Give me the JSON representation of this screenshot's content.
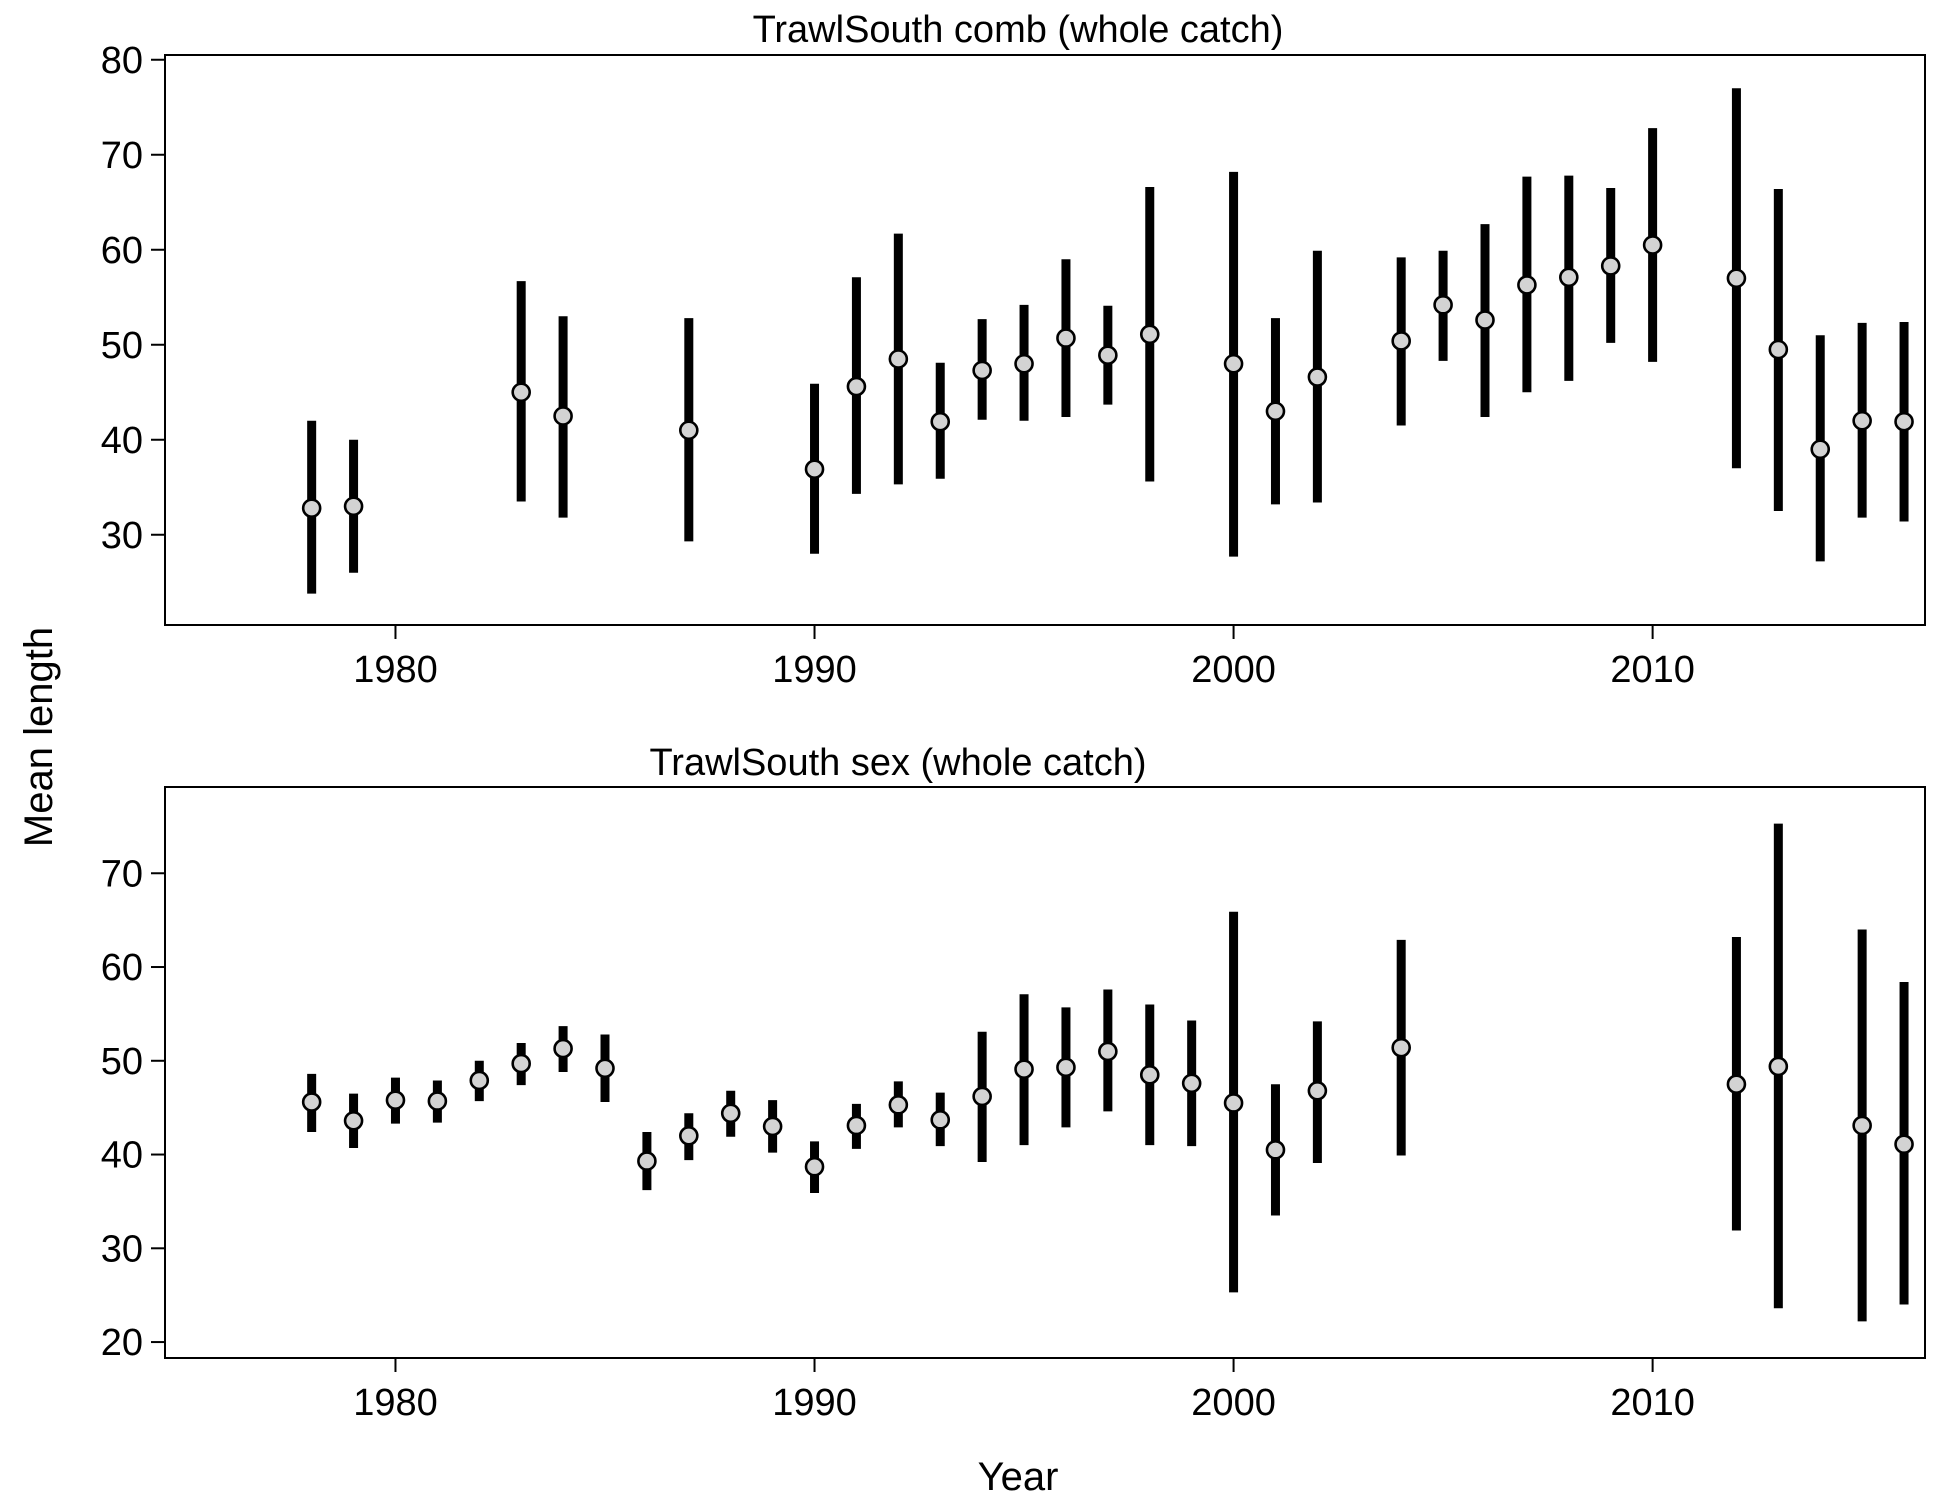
{
  "ylabel": "Mean length",
  "xlabel": "Year",
  "colors": {
    "point_fill": "#d3d3d3",
    "stroke": "#000000",
    "background": "#ffffff"
  },
  "chart_data": [
    {
      "type": "scatter",
      "title": "TrawlSouth comb (whole catch)",
      "xlim": [
        1974.5,
        2016.5
      ],
      "ylim": [
        20.5,
        80.5
      ],
      "xticks": [
        1980,
        1990,
        2000,
        2010
      ],
      "yticks": [
        30,
        40,
        50,
        60,
        70,
        80
      ],
      "grid": false,
      "points": [
        {
          "x": 1978,
          "y": 32.8,
          "lo": 23.8,
          "hi": 42.0
        },
        {
          "x": 1979,
          "y": 33.0,
          "lo": 26.0,
          "hi": 40.0
        },
        {
          "x": 1983,
          "y": 45.0,
          "lo": 33.5,
          "hi": 56.7
        },
        {
          "x": 1984,
          "y": 42.5,
          "lo": 31.8,
          "hi": 53.0
        },
        {
          "x": 1987,
          "y": 41.0,
          "lo": 29.3,
          "hi": 52.8
        },
        {
          "x": 1990,
          "y": 36.9,
          "lo": 28.0,
          "hi": 45.9
        },
        {
          "x": 1991,
          "y": 45.6,
          "lo": 34.3,
          "hi": 57.1
        },
        {
          "x": 1992,
          "y": 48.5,
          "lo": 35.3,
          "hi": 61.7
        },
        {
          "x": 1993,
          "y": 41.9,
          "lo": 35.9,
          "hi": 48.1
        },
        {
          "x": 1994,
          "y": 47.3,
          "lo": 42.1,
          "hi": 52.7
        },
        {
          "x": 1995,
          "y": 48.0,
          "lo": 42.0,
          "hi": 54.2
        },
        {
          "x": 1996,
          "y": 50.7,
          "lo": 42.4,
          "hi": 59.0
        },
        {
          "x": 1997,
          "y": 48.9,
          "lo": 43.7,
          "hi": 54.1
        },
        {
          "x": 1998,
          "y": 51.1,
          "lo": 35.6,
          "hi": 66.6
        },
        {
          "x": 2000,
          "y": 48.0,
          "lo": 27.7,
          "hi": 68.2
        },
        {
          "x": 2001,
          "y": 43.0,
          "lo": 33.2,
          "hi": 52.8
        },
        {
          "x": 2002,
          "y": 46.6,
          "lo": 33.4,
          "hi": 59.9
        },
        {
          "x": 2004,
          "y": 50.4,
          "lo": 41.5,
          "hi": 59.2
        },
        {
          "x": 2005,
          "y": 54.2,
          "lo": 48.3,
          "hi": 59.9
        },
        {
          "x": 2006,
          "y": 52.6,
          "lo": 42.4,
          "hi": 62.7
        },
        {
          "x": 2007,
          "y": 56.3,
          "lo": 45.0,
          "hi": 67.7
        },
        {
          "x": 2008,
          "y": 57.1,
          "lo": 46.2,
          "hi": 67.8
        },
        {
          "x": 2009,
          "y": 58.3,
          "lo": 50.2,
          "hi": 66.5
        },
        {
          "x": 2010,
          "y": 60.5,
          "lo": 48.2,
          "hi": 72.8
        },
        {
          "x": 2012,
          "y": 57.0,
          "lo": 37.0,
          "hi": 77.0
        },
        {
          "x": 2013,
          "y": 49.5,
          "lo": 32.5,
          "hi": 66.4
        },
        {
          "x": 2014,
          "y": 39.0,
          "lo": 27.2,
          "hi": 51.0
        },
        {
          "x": 2015,
          "y": 42.0,
          "lo": 31.8,
          "hi": 52.3
        },
        {
          "x": 2016,
          "y": 41.9,
          "lo": 31.4,
          "hi": 52.4
        }
      ]
    },
    {
      "type": "scatter",
      "title": "TrawlSouth sex (whole catch)",
      "xlim": [
        1974.5,
        2016.5
      ],
      "ylim": [
        18.3,
        79.2
      ],
      "xticks": [
        1980,
        1990,
        2000,
        2010
      ],
      "yticks": [
        20,
        30,
        40,
        50,
        60,
        70
      ],
      "grid": false,
      "points": [
        {
          "x": 1978,
          "y": 45.6,
          "lo": 42.4,
          "hi": 48.6
        },
        {
          "x": 1979,
          "y": 43.6,
          "lo": 40.7,
          "hi": 46.5
        },
        {
          "x": 1980,
          "y": 45.8,
          "lo": 43.3,
          "hi": 48.2
        },
        {
          "x": 1981,
          "y": 45.7,
          "lo": 43.4,
          "hi": 47.9
        },
        {
          "x": 1982,
          "y": 47.9,
          "lo": 45.7,
          "hi": 50.0
        },
        {
          "x": 1983,
          "y": 49.7,
          "lo": 47.4,
          "hi": 51.9
        },
        {
          "x": 1984,
          "y": 51.3,
          "lo": 48.8,
          "hi": 53.7
        },
        {
          "x": 1985,
          "y": 49.2,
          "lo": 45.6,
          "hi": 52.8
        },
        {
          "x": 1986,
          "y": 39.3,
          "lo": 36.2,
          "hi": 42.4
        },
        {
          "x": 1987,
          "y": 42.0,
          "lo": 39.4,
          "hi": 44.4
        },
        {
          "x": 1988,
          "y": 44.4,
          "lo": 41.9,
          "hi": 46.8
        },
        {
          "x": 1989,
          "y": 43.0,
          "lo": 40.2,
          "hi": 45.8
        },
        {
          "x": 1990,
          "y": 38.7,
          "lo": 35.9,
          "hi": 41.4
        },
        {
          "x": 1991,
          "y": 43.1,
          "lo": 40.6,
          "hi": 45.4
        },
        {
          "x": 1992,
          "y": 45.3,
          "lo": 42.9,
          "hi": 47.8
        },
        {
          "x": 1993,
          "y": 43.7,
          "lo": 40.9,
          "hi": 46.6
        },
        {
          "x": 1994,
          "y": 46.2,
          "lo": 39.2,
          "hi": 53.1
        },
        {
          "x": 1995,
          "y": 49.1,
          "lo": 41.0,
          "hi": 57.1
        },
        {
          "x": 1996,
          "y": 49.3,
          "lo": 42.9,
          "hi": 55.7
        },
        {
          "x": 1997,
          "y": 51.0,
          "lo": 44.6,
          "hi": 57.6
        },
        {
          "x": 1998,
          "y": 48.5,
          "lo": 41.0,
          "hi": 56.0
        },
        {
          "x": 1999,
          "y": 47.6,
          "lo": 40.9,
          "hi": 54.3
        },
        {
          "x": 2000,
          "y": 45.5,
          "lo": 25.3,
          "hi": 65.9
        },
        {
          "x": 2001,
          "y": 40.5,
          "lo": 33.5,
          "hi": 47.5
        },
        {
          "x": 2002,
          "y": 46.8,
          "lo": 39.1,
          "hi": 54.2
        },
        {
          "x": 2004,
          "y": 51.4,
          "lo": 39.9,
          "hi": 62.9
        },
        {
          "x": 2012,
          "y": 47.5,
          "lo": 31.9,
          "hi": 63.2
        },
        {
          "x": 2013,
          "y": 49.4,
          "lo": 23.6,
          "hi": 75.3
        },
        {
          "x": 2015,
          "y": 43.1,
          "lo": 22.2,
          "hi": 64.0
        },
        {
          "x": 2016,
          "y": 41.1,
          "lo": 24.0,
          "hi": 58.4
        }
      ]
    }
  ]
}
